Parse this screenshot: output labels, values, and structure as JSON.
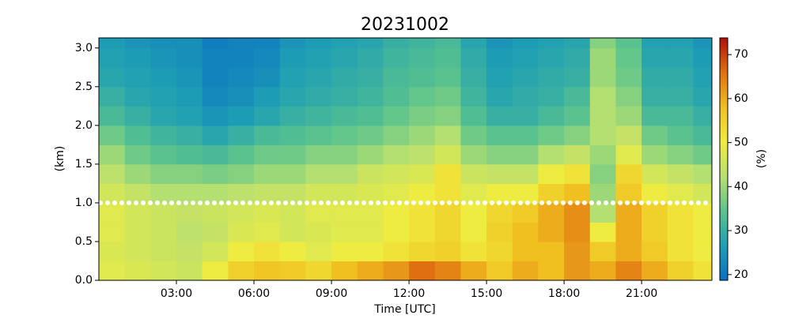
{
  "chart_data": {
    "type": "heatmap",
    "title": "20231002",
    "xlabel": "Time [UTC]",
    "ylabel": "(km)",
    "colorbar_label": "(%)",
    "x": [
      0.5,
      1.5,
      2.5,
      3.5,
      4.5,
      5.5,
      6.5,
      7.5,
      8.5,
      9.5,
      10.5,
      11.5,
      12.5,
      13.5,
      14.5,
      15.5,
      16.5,
      17.5,
      18.5,
      19.5,
      20.5,
      21.5,
      22.5,
      23.5
    ],
    "y": [
      0.125,
      0.375,
      0.625,
      0.875,
      1.125,
      1.375,
      1.625,
      1.875,
      2.125,
      2.375,
      2.625,
      2.875,
      3.125
    ],
    "z": [
      [
        48,
        47,
        46,
        45,
        50,
        55,
        57,
        56,
        54,
        58,
        60,
        62,
        66,
        64,
        60,
        56,
        60,
        58,
        62,
        60,
        64,
        60,
        55,
        52
      ],
      [
        47,
        46,
        45,
        44,
        46,
        50,
        52,
        50,
        48,
        50,
        50,
        52,
        54,
        55,
        52,
        54,
        58,
        58,
        62,
        56,
        60,
        56,
        52,
        50
      ],
      [
        48,
        46,
        45,
        43,
        44,
        47,
        48,
        46,
        47,
        48,
        48,
        50,
        52,
        54,
        50,
        55,
        58,
        60,
        63,
        50,
        60,
        55,
        52,
        50
      ],
      [
        48,
        46,
        45,
        44,
        45,
        46,
        47,
        46,
        48,
        48,
        48,
        50,
        52,
        54,
        50,
        54,
        56,
        60,
        63,
        42,
        60,
        55,
        52,
        50
      ],
      [
        46,
        44,
        42,
        42,
        42,
        43,
        44,
        44,
        46,
        46,
        47,
        48,
        50,
        52,
        48,
        50,
        50,
        55,
        58,
        40,
        56,
        50,
        48,
        46
      ],
      [
        43,
        40,
        38,
        38,
        37,
        38,
        40,
        40,
        42,
        42,
        45,
        46,
        47,
        52,
        45,
        44,
        44,
        50,
        52,
        38,
        54,
        46,
        44,
        42
      ],
      [
        40,
        36,
        34,
        33,
        32,
        34,
        36,
        36,
        38,
        38,
        40,
        42,
        43,
        46,
        40,
        38,
        38,
        42,
        44,
        40,
        48,
        40,
        38,
        36
      ],
      [
        36,
        33,
        31,
        30,
        28,
        30,
        32,
        33,
        34,
        35,
        36,
        38,
        40,
        42,
        36,
        34,
        34,
        36,
        38,
        42,
        44,
        36,
        34,
        32
      ],
      [
        32,
        30,
        28,
        27,
        25,
        26,
        28,
        30,
        31,
        32,
        33,
        35,
        37,
        38,
        33,
        30,
        30,
        32,
        34,
        42,
        40,
        32,
        32,
        30
      ],
      [
        30,
        28,
        27,
        26,
        23,
        24,
        26,
        28,
        29,
        30,
        31,
        33,
        35,
        36,
        31,
        28,
        29,
        30,
        32,
        42,
        38,
        30,
        30,
        28
      ],
      [
        28,
        27,
        26,
        25,
        22,
        23,
        24,
        27,
        28,
        29,
        30,
        32,
        33,
        34,
        30,
        27,
        28,
        29,
        30,
        40,
        36,
        29,
        29,
        27
      ],
      [
        27,
        26,
        25,
        24,
        22,
        22,
        23,
        26,
        27,
        28,
        29,
        31,
        32,
        33,
        29,
        26,
        27,
        28,
        29,
        40,
        35,
        28,
        28,
        26
      ],
      [
        26,
        25,
        24,
        24,
        21,
        22,
        22,
        25,
        26,
        27,
        28,
        30,
        31,
        32,
        28,
        25,
        26,
        27,
        28,
        38,
        34,
        27,
        27,
        25
      ]
    ],
    "xlim": [
      0,
      23.72
    ],
    "ylim": [
      0,
      3.13
    ],
    "xticks": [
      {
        "value": 3,
        "label": "03:00"
      },
      {
        "value": 6,
        "label": "06:00"
      },
      {
        "value": 9,
        "label": "09:00"
      },
      {
        "value": 12,
        "label": "12:00"
      },
      {
        "value": 15,
        "label": "15:00"
      },
      {
        "value": 18,
        "label": "18:00"
      },
      {
        "value": 21,
        "label": "21:00"
      }
    ],
    "yticks": [
      {
        "value": 0,
        "label": "0.0"
      },
      {
        "value": 0.5,
        "label": "0.5"
      },
      {
        "value": 1,
        "label": "1.0"
      },
      {
        "value": 1.5,
        "label": "1.5"
      },
      {
        "value": 2,
        "label": "2.0"
      },
      {
        "value": 2.5,
        "label": "2.5"
      },
      {
        "value": 3,
        "label": "3.0"
      }
    ],
    "clim": [
      18.7,
      73.8
    ],
    "cticks": [
      20,
      30,
      40,
      50,
      60,
      70
    ],
    "colormap": [
      "#0a6fc4",
      "#1e9fb4",
      "#5cc48c",
      "#b8e070",
      "#f0ec40",
      "#f0c020",
      "#e07010",
      "#b01008"
    ],
    "hline": 1.0,
    "hline_color": "#ffffff"
  }
}
